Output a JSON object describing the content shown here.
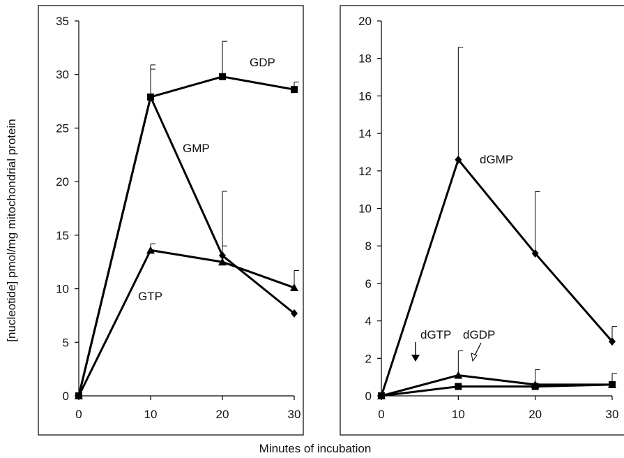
{
  "shared": {
    "ylabel": "[nucleotide] pmol/mg mitochondrial protein",
    "xlabel": "Minutes of incubation"
  },
  "chart_data": [
    {
      "type": "line",
      "x": [
        0,
        10,
        20,
        30
      ],
      "xlim": [
        0,
        30
      ],
      "ylim": [
        0,
        35
      ],
      "xticks": [
        0,
        10,
        20,
        30
      ],
      "yticks": [
        0,
        5,
        10,
        15,
        20,
        25,
        30,
        35
      ],
      "series": [
        {
          "name": "GDP",
          "marker": "square",
          "values": [
            0,
            27.9,
            29.8,
            28.6
          ],
          "errors": [
            0,
            3.0,
            3.3,
            0.7
          ]
        },
        {
          "name": "GMP",
          "marker": "diamond",
          "values": [
            0,
            27.9,
            13.1,
            7.7
          ],
          "errors": [
            0,
            2.6,
            6.0,
            0
          ]
        },
        {
          "name": "GTP",
          "marker": "triangle",
          "values": [
            0,
            13.6,
            12.5,
            10.1
          ],
          "errors": [
            0,
            0.6,
            1.5,
            1.6
          ]
        }
      ],
      "annotations": [
        {
          "text": "GDP",
          "series": "GDP"
        },
        {
          "text": "GMP",
          "series": "GMP"
        },
        {
          "text": "GTP",
          "series": "GTP"
        }
      ]
    },
    {
      "type": "line",
      "x": [
        0,
        10,
        20,
        30
      ],
      "xlim": [
        0,
        30
      ],
      "ylim": [
        0,
        20
      ],
      "xticks": [
        0,
        10,
        20,
        30
      ],
      "yticks": [
        0,
        2,
        4,
        6,
        8,
        10,
        12,
        14,
        16,
        18,
        20
      ],
      "series": [
        {
          "name": "dGMP",
          "marker": "diamond",
          "values": [
            0,
            12.6,
            7.6,
            2.9
          ],
          "errors": [
            0,
            6.0,
            3.3,
            0.8
          ]
        },
        {
          "name": "dGTP",
          "marker": "triangle",
          "values": [
            0,
            1.1,
            0.6,
            0.6
          ],
          "errors": [
            0,
            1.3,
            0.8,
            0.6
          ]
        },
        {
          "name": "dGDP",
          "marker": "square",
          "values": [
            0,
            0.5,
            0.5,
            0.6
          ],
          "errors": [
            0,
            0,
            0,
            0
          ]
        }
      ],
      "annotations": [
        {
          "text": "dGMP",
          "series": "dGMP"
        },
        {
          "text": "dGTP",
          "series": "dGTP"
        },
        {
          "text": "dGDP",
          "series": "dGDP"
        }
      ]
    }
  ]
}
